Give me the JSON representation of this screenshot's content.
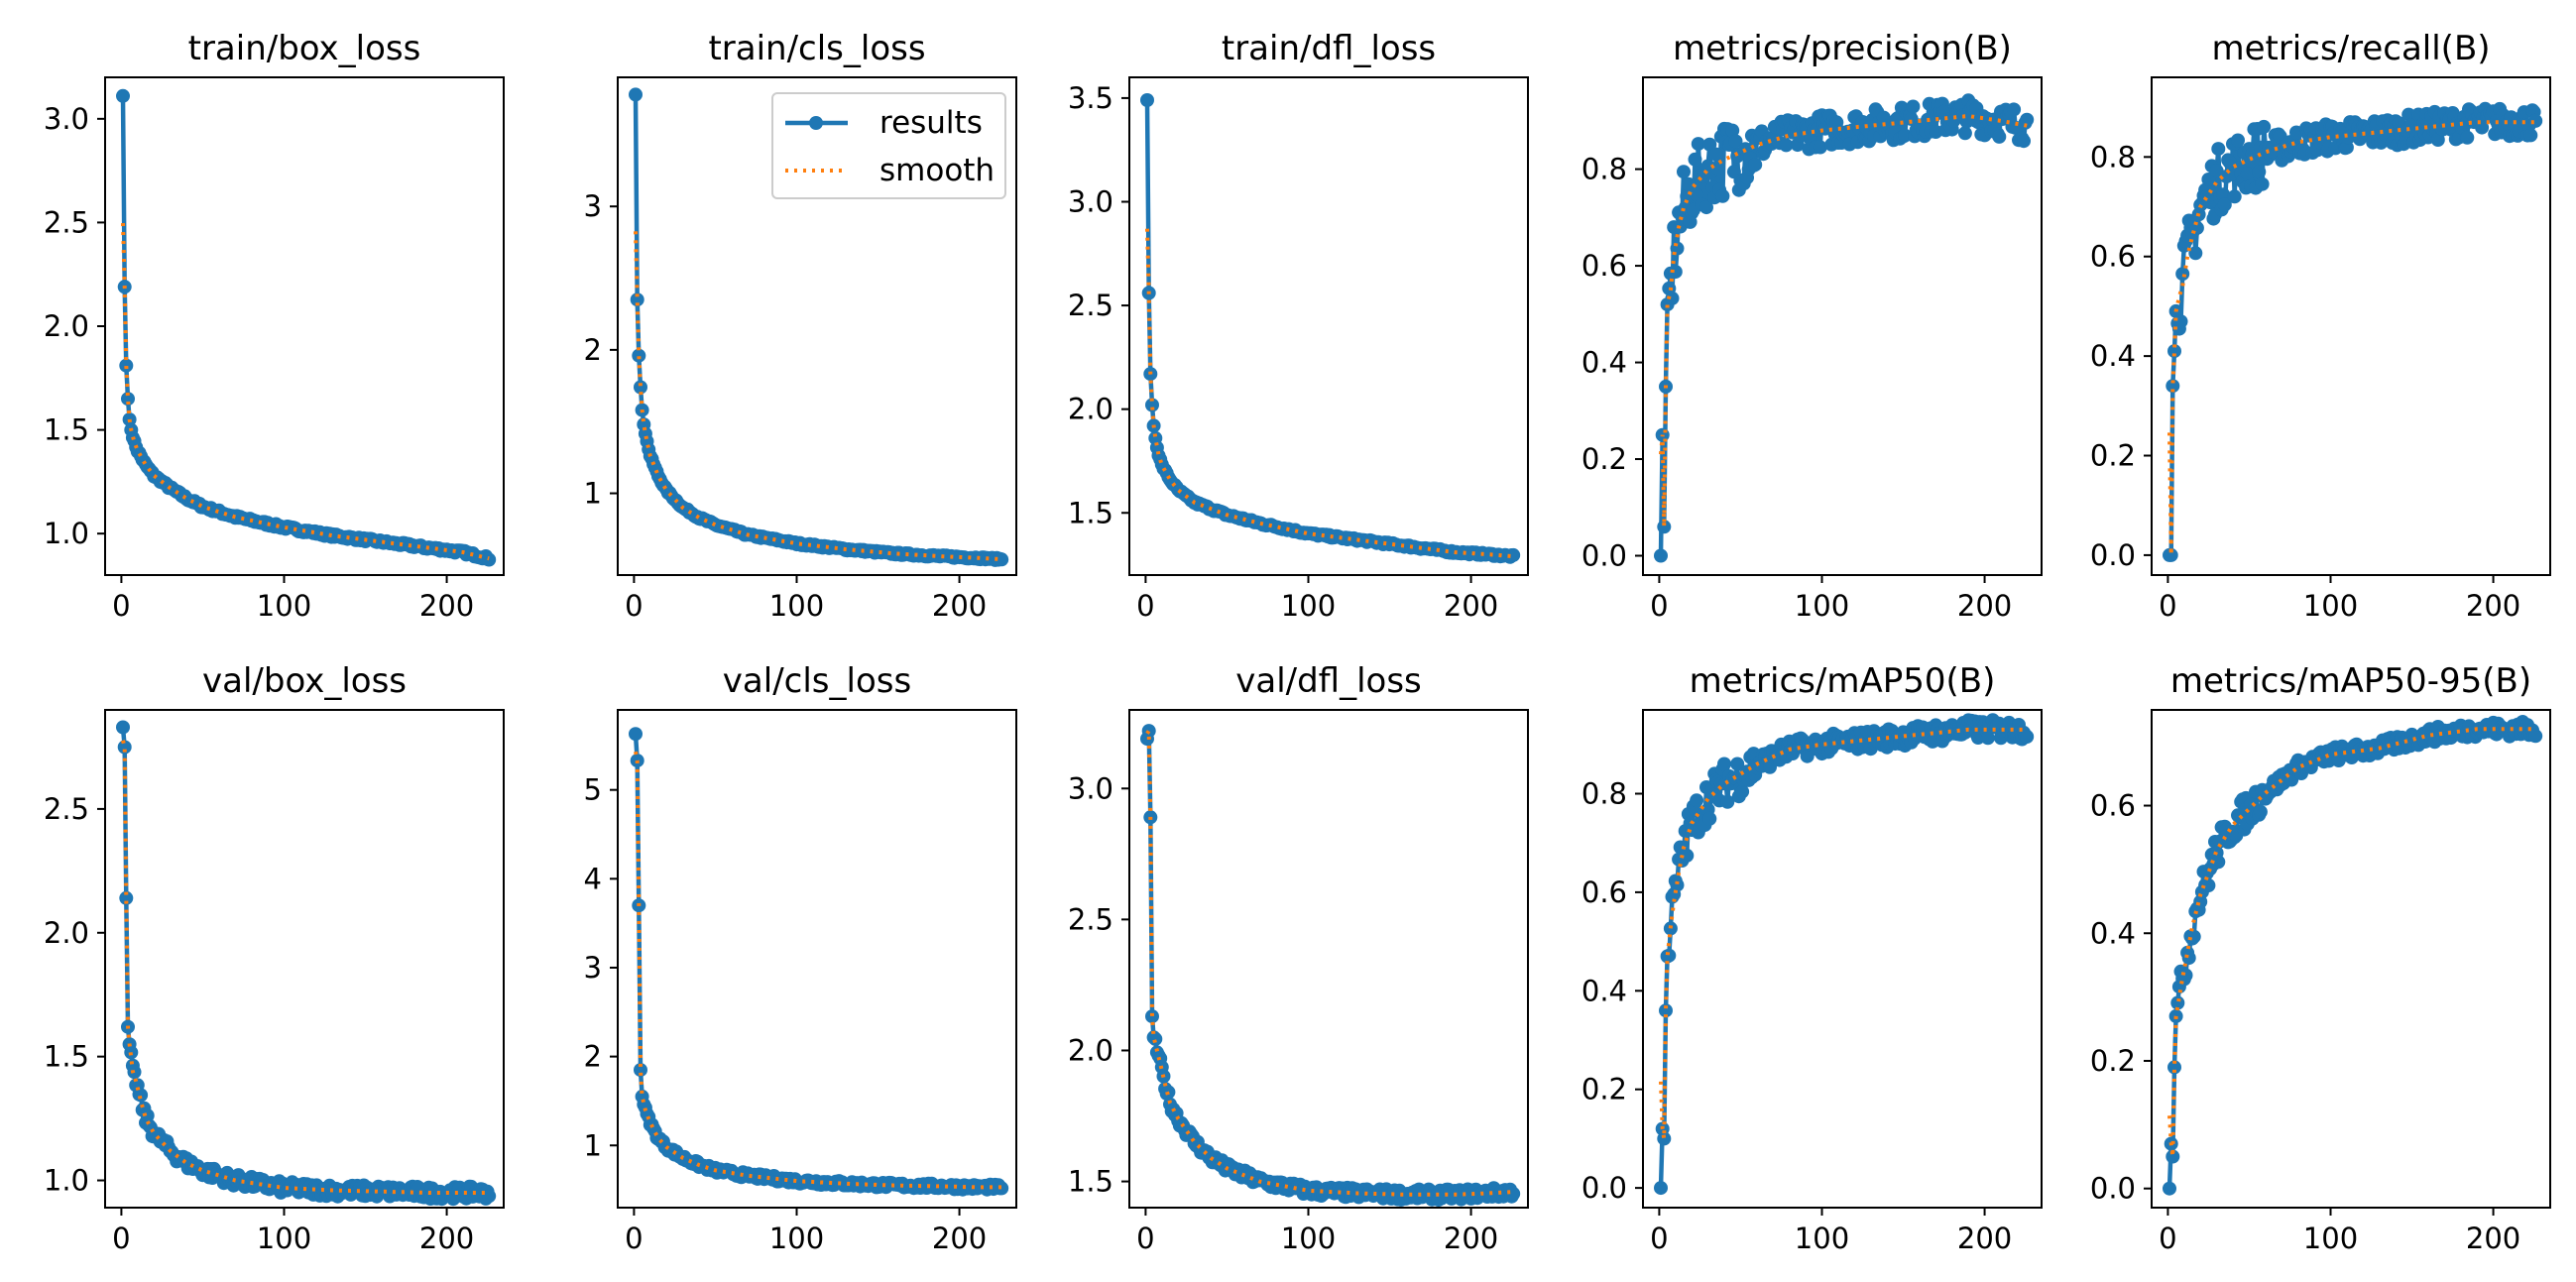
{
  "colors": {
    "results": "#1f77b4",
    "smooth": "#ff7f0e"
  },
  "legend": {
    "results_label": "results",
    "smooth_label": "smooth"
  },
  "chart_data": [
    {
      "type": "line",
      "title": "train/box_loss",
      "xlim": [
        -10,
        235
      ],
      "ylim": [
        0.8,
        3.2
      ],
      "xticks": [
        0,
        100,
        200
      ],
      "yticks": [
        1.0,
        1.5,
        2.0,
        2.5,
        3.0
      ],
      "ytick_labels": [
        "1.0",
        "1.5",
        "2.0",
        "2.5",
        "3.0"
      ],
      "kind": "loss",
      "points": [
        [
          1,
          3.11
        ],
        [
          2,
          2.19
        ],
        [
          3,
          1.81
        ],
        [
          4,
          1.65
        ],
        [
          5,
          1.55
        ],
        [
          6,
          1.5
        ],
        [
          8,
          1.44
        ],
        [
          10,
          1.4
        ],
        [
          15,
          1.33
        ],
        [
          20,
          1.28
        ],
        [
          30,
          1.22
        ],
        [
          40,
          1.17
        ],
        [
          50,
          1.13
        ],
        [
          70,
          1.08
        ],
        [
          100,
          1.03
        ],
        [
          130,
          0.99
        ],
        [
          160,
          0.96
        ],
        [
          190,
          0.93
        ],
        [
          210,
          0.91
        ],
        [
          226,
          0.88
        ]
      ],
      "noise": 0.008
    },
    {
      "type": "line",
      "title": "train/cls_loss",
      "xlim": [
        -10,
        235
      ],
      "ylim": [
        0.43,
        3.9
      ],
      "xticks": [
        0,
        100,
        200
      ],
      "yticks": [
        1,
        2,
        3
      ],
      "ytick_labels": [
        "1",
        "2",
        "3"
      ],
      "kind": "loss",
      "points": [
        [
          1,
          3.78
        ],
        [
          2,
          2.35
        ],
        [
          3,
          1.96
        ],
        [
          4,
          1.74
        ],
        [
          5,
          1.58
        ],
        [
          6,
          1.48
        ],
        [
          8,
          1.36
        ],
        [
          10,
          1.26
        ],
        [
          15,
          1.12
        ],
        [
          20,
          1.02
        ],
        [
          30,
          0.9
        ],
        [
          40,
          0.83
        ],
        [
          50,
          0.78
        ],
        [
          70,
          0.71
        ],
        [
          100,
          0.65
        ],
        [
          130,
          0.61
        ],
        [
          160,
          0.58
        ],
        [
          190,
          0.56
        ],
        [
          210,
          0.55
        ],
        [
          226,
          0.54
        ]
      ],
      "noise": 0.008,
      "legend": true
    },
    {
      "type": "line",
      "title": "train/dfl_loss",
      "xlim": [
        -10,
        235
      ],
      "ylim": [
        1.2,
        3.6
      ],
      "xticks": [
        0,
        100,
        200
      ],
      "yticks": [
        1.5,
        2.0,
        2.5,
        3.0,
        3.5
      ],
      "ytick_labels": [
        "1.5",
        "2.0",
        "2.5",
        "3.0",
        "3.5"
      ],
      "kind": "loss",
      "points": [
        [
          1,
          3.49
        ],
        [
          2,
          2.56
        ],
        [
          3,
          2.17
        ],
        [
          4,
          2.02
        ],
        [
          5,
          1.92
        ],
        [
          6,
          1.86
        ],
        [
          8,
          1.78
        ],
        [
          10,
          1.73
        ],
        [
          15,
          1.66
        ],
        [
          20,
          1.61
        ],
        [
          30,
          1.55
        ],
        [
          40,
          1.52
        ],
        [
          50,
          1.49
        ],
        [
          70,
          1.45
        ],
        [
          100,
          1.4
        ],
        [
          130,
          1.37
        ],
        [
          160,
          1.34
        ],
        [
          190,
          1.31
        ],
        [
          210,
          1.3
        ],
        [
          226,
          1.29
        ]
      ],
      "noise": 0.006
    },
    {
      "type": "line",
      "title": "metrics/precision(B)",
      "xlim": [
        -10,
        235
      ],
      "ylim": [
        -0.04,
        0.99
      ],
      "xticks": [
        0,
        100,
        200
      ],
      "yticks": [
        0.0,
        0.2,
        0.4,
        0.6,
        0.8
      ],
      "ytick_labels": [
        "0.0",
        "0.2",
        "0.4",
        "0.6",
        "0.8"
      ],
      "kind": "metric",
      "points": [
        [
          1,
          0.0
        ],
        [
          2,
          0.25
        ],
        [
          3,
          0.06
        ],
        [
          4,
          0.35
        ],
        [
          5,
          0.52
        ],
        [
          7,
          0.55
        ],
        [
          9,
          0.62
        ],
        [
          12,
          0.68
        ],
        [
          15,
          0.72
        ],
        [
          20,
          0.76
        ],
        [
          30,
          0.8
        ],
        [
          40,
          0.82
        ],
        [
          60,
          0.85
        ],
        [
          80,
          0.87
        ],
        [
          100,
          0.88
        ],
        [
          130,
          0.89
        ],
        [
          160,
          0.9
        ],
        [
          190,
          0.91
        ],
        [
          210,
          0.9
        ],
        [
          226,
          0.89
        ]
      ],
      "noise": 0.035
    },
    {
      "type": "line",
      "title": "metrics/recall(B)",
      "xlim": [
        -10,
        235
      ],
      "ylim": [
        -0.04,
        0.96
      ],
      "xticks": [
        0,
        100,
        200
      ],
      "yticks": [
        0.0,
        0.2,
        0.4,
        0.6,
        0.8
      ],
      "ytick_labels": [
        "0.0",
        "0.2",
        "0.4",
        "0.6",
        "0.8"
      ],
      "kind": "metric",
      "points": [
        [
          1,
          0.0
        ],
        [
          2,
          0.0
        ],
        [
          3,
          0.34
        ],
        [
          4,
          0.41
        ],
        [
          5,
          0.49
        ],
        [
          7,
          0.52
        ],
        [
          9,
          0.54
        ],
        [
          12,
          0.6
        ],
        [
          15,
          0.64
        ],
        [
          20,
          0.7
        ],
        [
          30,
          0.75
        ],
        [
          40,
          0.78
        ],
        [
          60,
          0.81
        ],
        [
          80,
          0.83
        ],
        [
          100,
          0.84
        ],
        [
          130,
          0.85
        ],
        [
          160,
          0.86
        ],
        [
          190,
          0.87
        ],
        [
          210,
          0.87
        ],
        [
          226,
          0.87
        ]
      ],
      "noise": 0.03
    },
    {
      "type": "line",
      "title": "val/box_loss",
      "xlim": [
        -10,
        235
      ],
      "ylim": [
        0.89,
        2.9
      ],
      "xticks": [
        0,
        100,
        200
      ],
      "yticks": [
        1.0,
        1.5,
        2.0,
        2.5
      ],
      "ytick_labels": [
        "1.0",
        "1.5",
        "2.0",
        "2.5"
      ],
      "kind": "loss",
      "points": [
        [
          1,
          2.83
        ],
        [
          2,
          2.75
        ],
        [
          3,
          2.14
        ],
        [
          4,
          1.62
        ],
        [
          5,
          1.55
        ],
        [
          7,
          1.44
        ],
        [
          9,
          1.4
        ],
        [
          12,
          1.32
        ],
        [
          15,
          1.25
        ],
        [
          20,
          1.19
        ],
        [
          30,
          1.12
        ],
        [
          40,
          1.07
        ],
        [
          50,
          1.04
        ],
        [
          70,
          1.0
        ],
        [
          100,
          0.97
        ],
        [
          130,
          0.96
        ],
        [
          160,
          0.955
        ],
        [
          190,
          0.95
        ],
        [
          210,
          0.95
        ],
        [
          226,
          0.95
        ]
      ],
      "noise": 0.025
    },
    {
      "type": "line",
      "title": "val/cls_loss",
      "xlim": [
        -10,
        235
      ],
      "ylim": [
        0.3,
        5.9
      ],
      "xticks": [
        0,
        100,
        200
      ],
      "yticks": [
        1,
        2,
        3,
        4,
        5
      ],
      "ytick_labels": [
        "1",
        "2",
        "3",
        "4",
        "5"
      ],
      "kind": "loss",
      "points": [
        [
          1,
          5.63
        ],
        [
          2,
          5.33
        ],
        [
          3,
          3.7
        ],
        [
          4,
          1.85
        ],
        [
          5,
          1.55
        ],
        [
          7,
          1.4
        ],
        [
          9,
          1.3
        ],
        [
          12,
          1.18
        ],
        [
          15,
          1.08
        ],
        [
          20,
          0.98
        ],
        [
          30,
          0.86
        ],
        [
          40,
          0.78
        ],
        [
          50,
          0.72
        ],
        [
          70,
          0.66
        ],
        [
          100,
          0.6
        ],
        [
          130,
          0.57
        ],
        [
          160,
          0.55
        ],
        [
          190,
          0.54
        ],
        [
          210,
          0.53
        ],
        [
          226,
          0.53
        ]
      ],
      "noise": 0.03
    },
    {
      "type": "line",
      "title": "val/dfl_loss",
      "xlim": [
        -10,
        235
      ],
      "ylim": [
        1.4,
        3.3
      ],
      "xticks": [
        0,
        100,
        200
      ],
      "yticks": [
        1.5,
        2.0,
        2.5,
        3.0
      ],
      "ytick_labels": [
        "1.5",
        "2.0",
        "2.5",
        "3.0"
      ],
      "kind": "loss",
      "points": [
        [
          1,
          3.19
        ],
        [
          2,
          3.22
        ],
        [
          3,
          2.89
        ],
        [
          4,
          2.13
        ],
        [
          5,
          2.05
        ],
        [
          7,
          2.0
        ],
        [
          9,
          1.95
        ],
        [
          12,
          1.87
        ],
        [
          15,
          1.8
        ],
        [
          20,
          1.74
        ],
        [
          30,
          1.65
        ],
        [
          40,
          1.59
        ],
        [
          50,
          1.55
        ],
        [
          70,
          1.5
        ],
        [
          100,
          1.465
        ],
        [
          130,
          1.455
        ],
        [
          160,
          1.45
        ],
        [
          190,
          1.45
        ],
        [
          210,
          1.455
        ],
        [
          226,
          1.46
        ]
      ],
      "noise": 0.02
    },
    {
      "type": "line",
      "title": "metrics/mAP50(B)",
      "xlim": [
        -10,
        235
      ],
      "ylim": [
        -0.04,
        0.97
      ],
      "xticks": [
        0,
        100,
        200
      ],
      "yticks": [
        0.0,
        0.2,
        0.4,
        0.6,
        0.8
      ],
      "ytick_labels": [
        "0.0",
        "0.2",
        "0.4",
        "0.6",
        "0.8"
      ],
      "kind": "metric",
      "points": [
        [
          1,
          0.0
        ],
        [
          2,
          0.12
        ],
        [
          3,
          0.1
        ],
        [
          4,
          0.36
        ],
        [
          5,
          0.47
        ],
        [
          7,
          0.53
        ],
        [
          9,
          0.58
        ],
        [
          12,
          0.64
        ],
        [
          15,
          0.69
        ],
        [
          20,
          0.74
        ],
        [
          30,
          0.79
        ],
        [
          40,
          0.82
        ],
        [
          60,
          0.86
        ],
        [
          80,
          0.89
        ],
        [
          100,
          0.9
        ],
        [
          130,
          0.91
        ],
        [
          160,
          0.92
        ],
        [
          190,
          0.93
        ],
        [
          210,
          0.93
        ],
        [
          226,
          0.93
        ]
      ],
      "noise": 0.02
    },
    {
      "type": "line",
      "title": "metrics/mAP50-95(B)",
      "xlim": [
        -10,
        235
      ],
      "ylim": [
        -0.03,
        0.75
      ],
      "xticks": [
        0,
        100,
        200
      ],
      "yticks": [
        0.0,
        0.2,
        0.4,
        0.6
      ],
      "ytick_labels": [
        "0.0",
        "0.2",
        "0.4",
        "0.6"
      ],
      "kind": "metric",
      "points": [
        [
          1,
          0.0
        ],
        [
          2,
          0.07
        ],
        [
          3,
          0.05
        ],
        [
          4,
          0.19
        ],
        [
          5,
          0.27
        ],
        [
          7,
          0.3
        ],
        [
          9,
          0.33
        ],
        [
          12,
          0.37
        ],
        [
          15,
          0.41
        ],
        [
          20,
          0.46
        ],
        [
          30,
          0.53
        ],
        [
          40,
          0.57
        ],
        [
          60,
          0.62
        ],
        [
          80,
          0.66
        ],
        [
          100,
          0.68
        ],
        [
          130,
          0.69
        ],
        [
          160,
          0.71
        ],
        [
          190,
          0.72
        ],
        [
          210,
          0.72
        ],
        [
          226,
          0.72
        ]
      ],
      "noise": 0.012
    }
  ]
}
